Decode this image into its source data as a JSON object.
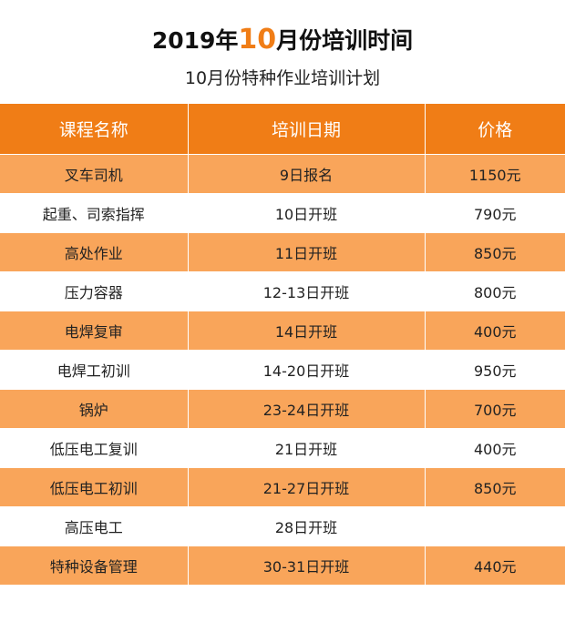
{
  "title": {
    "year": "2019年",
    "month": "10",
    "rest": "月份培训时间"
  },
  "subtitle": "10月份特种作业培训计划",
  "colors": {
    "accent": "#f07d16",
    "row_highlight": "#f9a55a",
    "row_plain": "#ffffff"
  },
  "table": {
    "headers": [
      "课程名称",
      "培训日期",
      "价格"
    ],
    "rows": [
      [
        "叉车司机",
        "9日报名",
        "1150元"
      ],
      [
        "起重、司索指挥",
        "10日开班",
        "790元"
      ],
      [
        "高处作业",
        "11日开班",
        "850元"
      ],
      [
        "压力容器",
        "12-13日开班",
        "800元"
      ],
      [
        "电焊复审",
        "14日开班",
        "400元"
      ],
      [
        "电焊工初训",
        "14-20日开班",
        "950元"
      ],
      [
        "锅炉",
        "23-24日开班",
        "700元"
      ],
      [
        "低压电工复训",
        "21日开班",
        "400元"
      ],
      [
        "低压电工初训",
        "21-27日开班",
        "850元"
      ],
      [
        "高压电工",
        "28日开班",
        ""
      ],
      [
        "特种设备管理",
        "30-31日开班",
        "440元"
      ]
    ]
  }
}
